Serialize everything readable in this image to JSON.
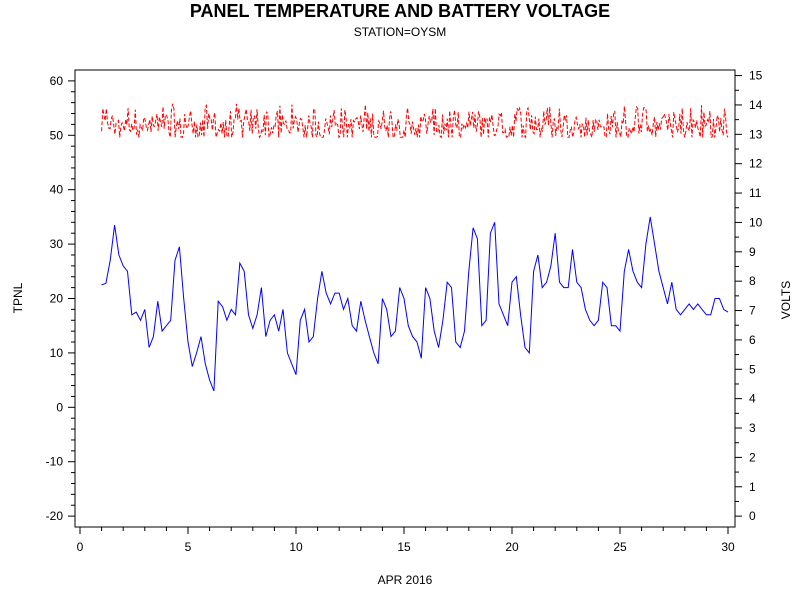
{
  "chart_data": {
    "type": "line",
    "title": "PANEL TEMPERATURE AND BATTERY VOLTAGE",
    "subtitle": "STATION=OYSM",
    "xlabel": "APR 2016",
    "ylabel_left": "TPNL",
    "ylabel_right": "VOLTS",
    "xlim": [
      0,
      30
    ],
    "ylim_left": [
      -22,
      62
    ],
    "ylim_right": [
      -0.37,
      15.19
    ],
    "x_ticks": [
      "0",
      "5",
      "10",
      "15",
      "20",
      "25",
      "30"
    ],
    "y_left_ticks": [
      "-20",
      "-10",
      "0",
      "10",
      "20",
      "30",
      "40",
      "50",
      "60"
    ],
    "y_right_ticks": [
      "0",
      "1",
      "2",
      "3",
      "4",
      "5",
      "6",
      "7",
      "8",
      "9",
      "10",
      "11",
      "12",
      "13",
      "14",
      "15"
    ],
    "grid": false,
    "series": [
      {
        "name": "TPNL",
        "axis": "left",
        "color": "#0000ff",
        "x": [
          1.0,
          1.2,
          1.4,
          1.6,
          1.8,
          2.0,
          2.2,
          2.4,
          2.6,
          2.8,
          3.0,
          3.2,
          3.4,
          3.6,
          3.8,
          4.0,
          4.2,
          4.4,
          4.6,
          4.8,
          5.0,
          5.2,
          5.4,
          5.6,
          5.8,
          6.0,
          6.2,
          6.4,
          6.6,
          6.8,
          7.0,
          7.2,
          7.4,
          7.6,
          7.8,
          8.0,
          8.2,
          8.4,
          8.6,
          8.8,
          9.0,
          9.2,
          9.4,
          9.6,
          9.8,
          10.0,
          10.2,
          10.4,
          10.6,
          10.8,
          11.0,
          11.2,
          11.4,
          11.6,
          11.8,
          12.0,
          12.2,
          12.4,
          12.6,
          12.8,
          13.0,
          13.2,
          13.4,
          13.6,
          13.8,
          14.0,
          14.2,
          14.4,
          14.6,
          14.8,
          15.0,
          15.2,
          15.4,
          15.6,
          15.8,
          16.0,
          16.2,
          16.4,
          16.6,
          16.8,
          17.0,
          17.2,
          17.4,
          17.6,
          17.8,
          18.0,
          18.2,
          18.4,
          18.6,
          18.8,
          19.0,
          19.2,
          19.4,
          19.6,
          19.8,
          20.0,
          20.2,
          20.4,
          20.6,
          20.8,
          21.0,
          21.2,
          21.4,
          21.6,
          21.8,
          22.0,
          22.2,
          22.4,
          22.6,
          22.8,
          23.0,
          23.2,
          23.4,
          23.6,
          23.8,
          24.0,
          24.2,
          24.4,
          24.6,
          24.8,
          25.0,
          25.2,
          25.4,
          25.6,
          25.8,
          26.0,
          26.2,
          26.4,
          26.6,
          26.8,
          27.0,
          27.2,
          27.4,
          27.6,
          27.8,
          28.0,
          28.2,
          28.4,
          28.6,
          28.8,
          29.0,
          29.2,
          29.4,
          29.6,
          29.8,
          30.0
        ],
        "values": [
          22.5,
          22.8,
          27,
          33.5,
          28,
          26,
          25,
          17,
          17.5,
          16,
          18,
          11,
          13,
          19.5,
          14,
          15,
          16,
          27,
          29.5,
          20,
          12,
          7.5,
          10,
          13,
          8,
          5,
          3,
          19.5,
          18.5,
          16,
          18,
          17,
          26.5,
          25,
          17,
          14.5,
          17,
          22,
          13,
          16,
          17,
          14,
          18,
          10,
          8,
          6,
          16,
          18,
          12,
          13,
          20,
          25,
          21,
          19,
          21,
          21,
          18,
          20,
          15,
          14,
          19.5,
          16,
          13,
          10,
          8,
          20,
          18,
          13,
          14,
          22,
          20,
          15,
          13,
          12,
          9,
          22,
          20,
          14,
          11,
          16,
          23,
          22,
          12,
          11,
          14,
          25,
          33,
          31,
          15,
          16,
          32,
          34,
          19,
          17,
          15,
          23,
          24,
          17,
          11,
          10,
          25,
          28,
          22,
          23,
          26,
          32,
          23,
          22,
          22,
          29,
          23,
          22,
          18,
          16,
          15,
          16,
          23,
          22,
          15,
          15,
          14,
          25,
          29,
          25,
          23,
          22,
          30,
          35,
          30,
          25,
          22,
          19,
          23,
          18,
          17,
          18,
          19,
          18,
          19,
          18,
          17,
          17,
          20,
          20,
          18,
          17.5
        ]
      },
      {
        "name": "VOLTS",
        "axis": "right",
        "color": "#ff0000",
        "dashed": true,
        "x": [
          1.0,
          30.0
        ],
        "values_range": [
          12.9,
          14.1
        ],
        "mean": 13.3
      }
    ]
  }
}
